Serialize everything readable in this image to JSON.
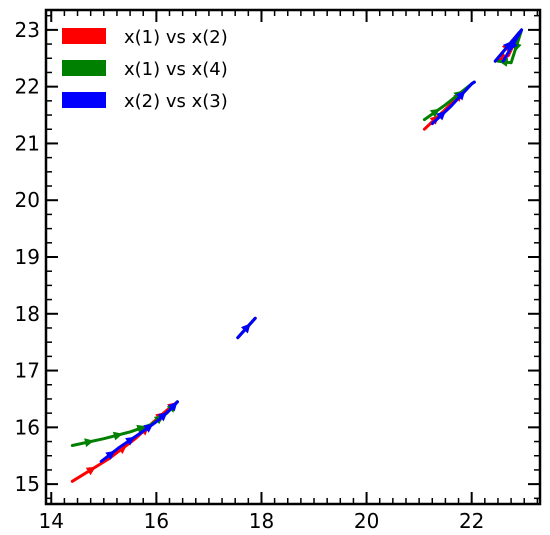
{
  "chart_data": {
    "type": "line",
    "title": "",
    "xlabel": "",
    "ylabel": "",
    "xlim": [
      13.9,
      23.3
    ],
    "ylim": [
      14.65,
      23.35
    ],
    "xticks": [
      14,
      16,
      18,
      20,
      22
    ],
    "yticks": [
      15,
      16,
      17,
      18,
      19,
      20,
      21,
      22,
      23
    ],
    "xtick_labels": [
      "14",
      "16",
      "18",
      "20",
      "22"
    ],
    "ytick_labels": [
      "15",
      "16",
      "17",
      "18",
      "19",
      "20",
      "21",
      "22",
      "23"
    ],
    "grid": false,
    "legend_placement": "top-left",
    "series": [
      {
        "name": "x(1) vs x(2)",
        "color": "#ff0000",
        "segments": [
          {
            "x": [
              14.4,
              15.1,
              15.6,
              15.95,
              16.2,
              16.4
            ],
            "y": [
              15.05,
              15.45,
              15.8,
              16.1,
              16.3,
              16.45
            ]
          },
          {
            "x": [
              17.55,
              17.88
            ],
            "y": [
              17.58,
              17.92
            ]
          },
          {
            "x": [
              21.1,
              21.5,
              22.0,
              22.05
            ],
            "y": [
              21.25,
              21.6,
              22.05,
              22.08
            ]
          },
          {
            "x": [
              22.45,
              22.9,
              22.7,
              22.5
            ],
            "y": [
              22.45,
              22.95,
              22.55,
              22.45
            ]
          }
        ]
      },
      {
        "name": "x(1) vs x(4)",
        "color": "#008000",
        "segments": [
          {
            "x": [
              14.4,
              15.0,
              15.5,
              15.9,
              16.2,
              16.4
            ],
            "y": [
              15.68,
              15.8,
              15.92,
              16.05,
              16.25,
              16.45
            ]
          },
          {
            "x": [
              17.55,
              17.88
            ],
            "y": [
              17.58,
              17.92
            ]
          },
          {
            "x": [
              21.1,
              21.5,
              22.0,
              22.05
            ],
            "y": [
              21.42,
              21.68,
              22.05,
              22.08
            ]
          },
          {
            "x": [
              22.45,
              22.95,
              22.75,
              22.5
            ],
            "y": [
              22.45,
              23.0,
              22.42,
              22.45
            ]
          }
        ]
      },
      {
        "name": "x(2) vs x(3)",
        "color": "#0000ff",
        "segments": [
          {
            "x": [
              14.95,
              15.3,
              15.7,
              16.0,
              16.25,
              16.4
            ],
            "y": [
              15.4,
              15.65,
              15.9,
              16.1,
              16.3,
              16.45
            ]
          },
          {
            "x": [
              17.55,
              17.88
            ],
            "y": [
              17.58,
              17.92
            ]
          },
          {
            "x": [
              21.25,
              21.6,
              22.0,
              22.05
            ],
            "y": [
              21.35,
              21.65,
              22.05,
              22.08
            ]
          },
          {
            "x": [
              22.45,
              22.95,
              22.6
            ],
            "y": [
              22.45,
              23.0,
              22.45
            ]
          }
        ]
      }
    ]
  }
}
